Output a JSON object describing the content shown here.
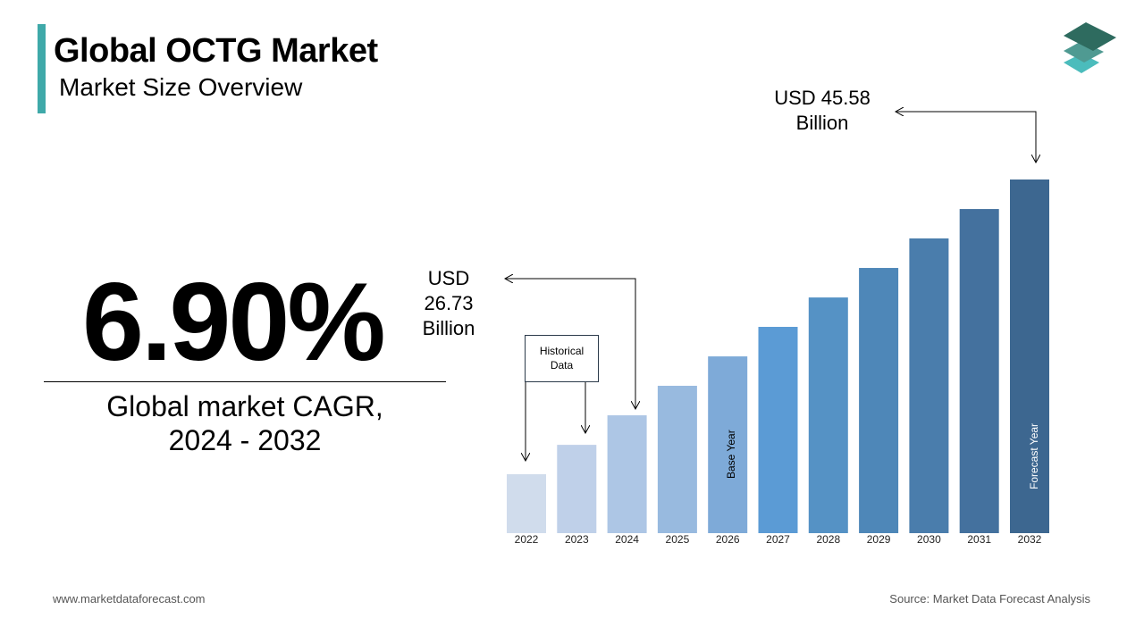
{
  "header": {
    "title": "Global OCTG Market",
    "subtitle": "Market Size Overview"
  },
  "kpi": {
    "value": "6.90%",
    "label_line1": "Global market CAGR,",
    "label_line2": "2024 - 2032"
  },
  "annotations": {
    "end_value": [
      "USD 45.58",
      "Billion"
    ],
    "base_value": [
      "USD",
      "26.73",
      "Billion"
    ],
    "historical": [
      "Historical",
      "Data"
    ],
    "base_year": "Base Year",
    "forecast_year": "Forecast Year"
  },
  "footer": {
    "website": "www.marketdataforecast.com",
    "source": "Source: Market Data Forecast Analysis"
  },
  "logo": {
    "colors": [
      "#2e6b5f",
      "#4f9a92",
      "#4bbcbc"
    ]
  },
  "chart_data": {
    "type": "bar",
    "title": "",
    "xlabel": "",
    "ylabel": "",
    "categories": [
      "2022",
      "2023",
      "2024",
      "2025",
      "2026",
      "2027",
      "2028",
      "2029",
      "2030",
      "2031",
      "2032"
    ],
    "values": [
      22.02,
      24.37,
      26.73,
      29.09,
      31.44,
      33.8,
      36.15,
      38.51,
      40.87,
      43.22,
      45.58
    ],
    "ylim": [
      17.31,
      45.58
    ],
    "grid": false,
    "legend": "none",
    "colors": [
      "#d0dcec",
      "#bfd0e9",
      "#adc6e5",
      "#98badf",
      "#7eaad8",
      "#5b9bd5",
      "#5592c5",
      "#4e87b8",
      "#4a7dac",
      "#44719e",
      "#3d6790"
    ]
  }
}
